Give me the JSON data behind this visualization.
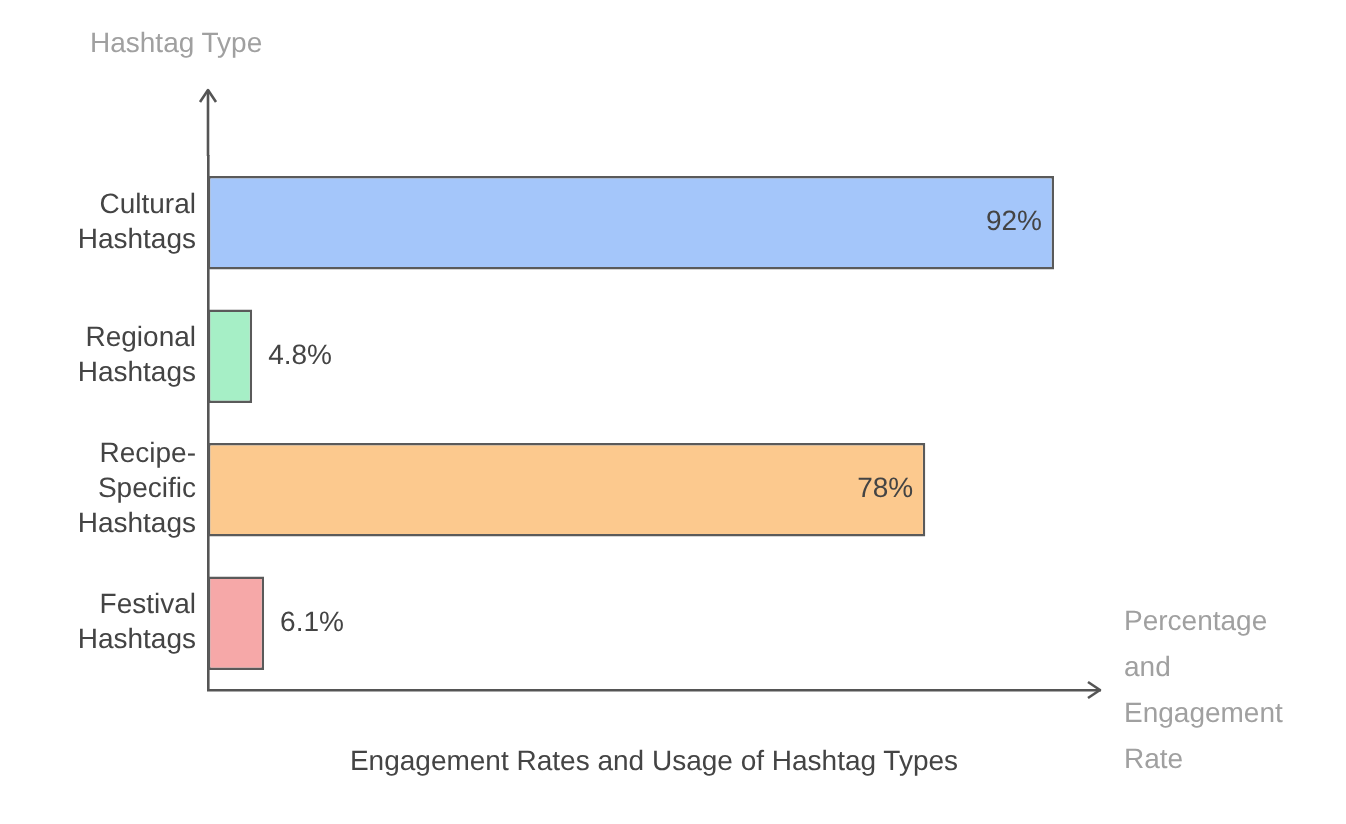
{
  "chart_data": {
    "type": "bar",
    "orientation": "horizontal",
    "title": "Engagement Rates and Usage of Hashtag Types",
    "xlabel": "Percentage and Engagement Rate",
    "ylabel": "Hashtag Type",
    "categories": [
      "Cultural Hashtags",
      "Regional Hashtags",
      "Recipe-Specific Hashtags",
      "Festival Hashtags"
    ],
    "values": [
      92,
      4.8,
      78,
      6.1
    ],
    "value_labels": [
      "92%",
      "4.8%",
      "78%",
      "6.1%"
    ],
    "colors": [
      "#a4c6fa",
      "#a6efc6",
      "#fcc98e",
      "#f6a8a8"
    ],
    "xlim": [
      0,
      97
    ],
    "tick_labels": "y",
    "legend": false
  }
}
